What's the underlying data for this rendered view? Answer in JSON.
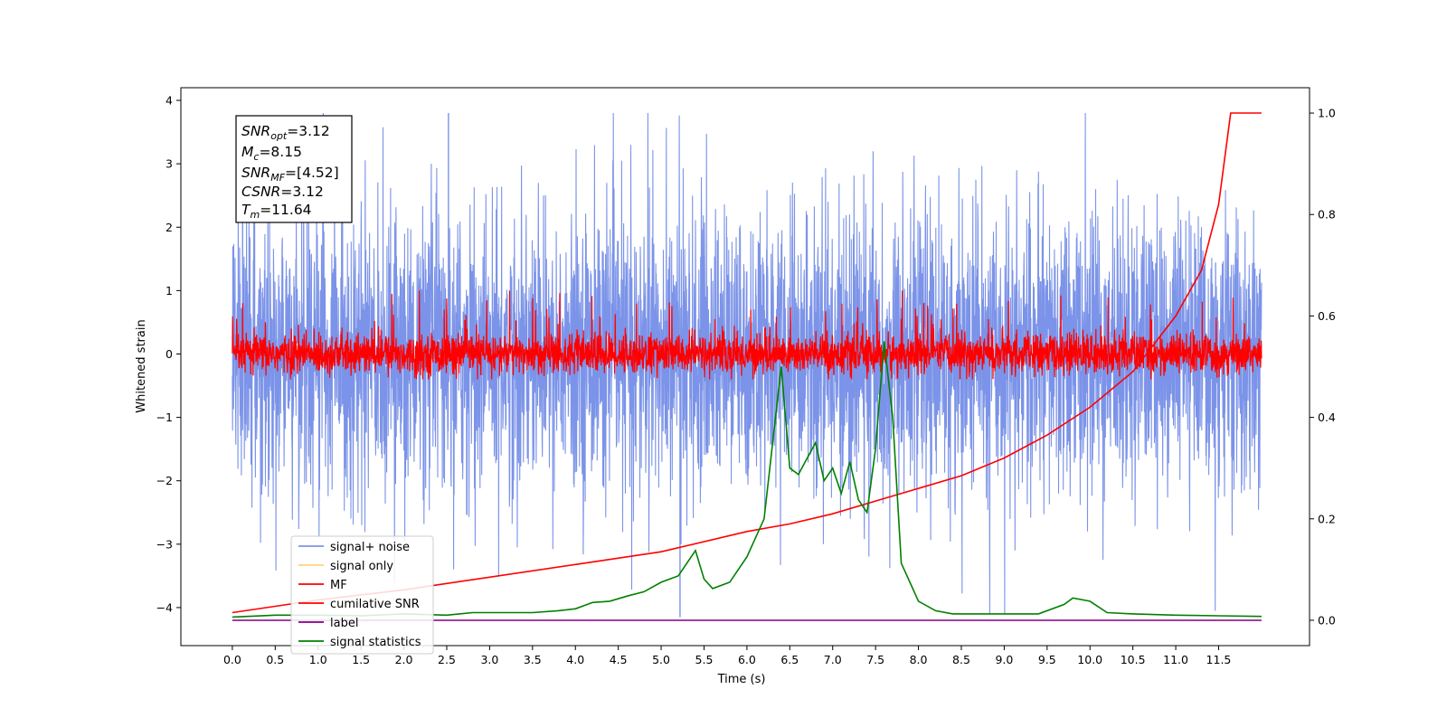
{
  "chart_data": {
    "type": "line",
    "xlabel": "Time (s)",
    "ylabel": "Whitened strain",
    "xlim": [
      -0.6,
      12.56
    ],
    "ylim": [
      -4.6,
      4.2
    ],
    "y2lim": [
      -0.05,
      1.05
    ],
    "x_ticks": [
      "0.0",
      "0.5",
      "1.0",
      "1.5",
      "2.0",
      "2.5",
      "3.0",
      "3.5",
      "4.0",
      "4.5",
      "5.0",
      "5.5",
      "6.0",
      "6.5",
      "7.0",
      "7.5",
      "8.0",
      "8.5",
      "9.0",
      "9.5",
      "10.0",
      "10.5",
      "11.0",
      "11.5"
    ],
    "y_ticks": [
      "4",
      "3",
      "2",
      "1",
      "0",
      "−1",
      "−2",
      "−3",
      "−4"
    ],
    "y2_ticks": [
      "1.0",
      "0.8",
      "0.6",
      "0.4",
      "0.2",
      "0.0"
    ],
    "legend_position": "lower-left",
    "stats_box": {
      "line1_main": "SNR",
      "line1_sub": "opt",
      "line1_value": "=3.12",
      "line2_main": "M",
      "line2_sub": "c",
      "line2_value": "=8.15",
      "line3_main": "SNR",
      "line3_sub": "MF",
      "line3_value": "=[4.52]",
      "line4_main": "CSNR",
      "line4_value": "=3.12",
      "line5_main": "T",
      "line5_sub": "m",
      "line5_value": "=11.64"
    },
    "series": [
      {
        "name": "signal+ noise",
        "color": "#7b93e8",
        "axis": "left",
        "x_range": [
          0.0,
          12.0
        ],
        "approx_range": [
          -4.1,
          3.8
        ]
      },
      {
        "name": "signal only",
        "color": "#ffd27f",
        "axis": "left"
      },
      {
        "name": "MF",
        "color": "#ff0000",
        "axis": "left",
        "x_range": [
          0.0,
          12.0
        ],
        "approx_range": [
          -0.4,
          1.0
        ]
      },
      {
        "name": "cumilative SNR",
        "color": "#ff0000",
        "axis": "right",
        "x": [
          0.0,
          1.0,
          2.0,
          3.0,
          4.0,
          5.0,
          6.0,
          6.5,
          7.0,
          7.5,
          8.0,
          8.5,
          9.0,
          9.5,
          10.0,
          10.5,
          11.0,
          11.3,
          11.5,
          11.64,
          12.0
        ],
        "values": [
          0.015,
          0.04,
          0.06,
          0.085,
          0.11,
          0.135,
          0.175,
          0.19,
          0.21,
          0.235,
          0.26,
          0.285,
          0.32,
          0.365,
          0.42,
          0.49,
          0.6,
          0.69,
          0.82,
          1.0,
          1.0
        ]
      },
      {
        "name": "label",
        "color": "#800080",
        "axis": "right",
        "x": [
          0.0,
          12.0
        ],
        "values": [
          0.0,
          0.0
        ]
      },
      {
        "name": "signal statistics",
        "color": "#008000",
        "axis": "left",
        "x": [
          0.0,
          0.5,
          1.0,
          1.5,
          2.0,
          2.5,
          2.8,
          3.0,
          3.5,
          3.8,
          4.0,
          4.2,
          4.4,
          4.6,
          4.8,
          5.0,
          5.2,
          5.4,
          5.5,
          5.6,
          5.8,
          6.0,
          6.2,
          6.4,
          6.5,
          6.6,
          6.8,
          6.9,
          7.0,
          7.1,
          7.2,
          7.3,
          7.4,
          7.5,
          7.6,
          7.7,
          7.8,
          8.0,
          8.2,
          8.4,
          8.6,
          9.0,
          9.4,
          9.7,
          9.8,
          10.0,
          10.2,
          10.5,
          11.0,
          11.5,
          12.0
        ],
        "values": [
          -4.15,
          -4.12,
          -4.12,
          -4.13,
          -4.1,
          -4.12,
          -4.08,
          -4.08,
          -4.08,
          -4.05,
          -4.02,
          -3.92,
          -3.9,
          -3.82,
          -3.75,
          -3.6,
          -3.5,
          -3.1,
          -3.55,
          -3.7,
          -3.6,
          -3.2,
          -2.6,
          -0.2,
          -1.8,
          -1.9,
          -1.4,
          -2.0,
          -1.8,
          -2.2,
          -1.7,
          -2.3,
          -2.5,
          -1.5,
          0.2,
          -1.0,
          -3.3,
          -3.9,
          -4.05,
          -4.1,
          -4.1,
          -4.1,
          -4.1,
          -3.95,
          -3.85,
          -3.9,
          -4.08,
          -4.1,
          -4.12,
          -4.13,
          -4.14
        ]
      }
    ]
  }
}
